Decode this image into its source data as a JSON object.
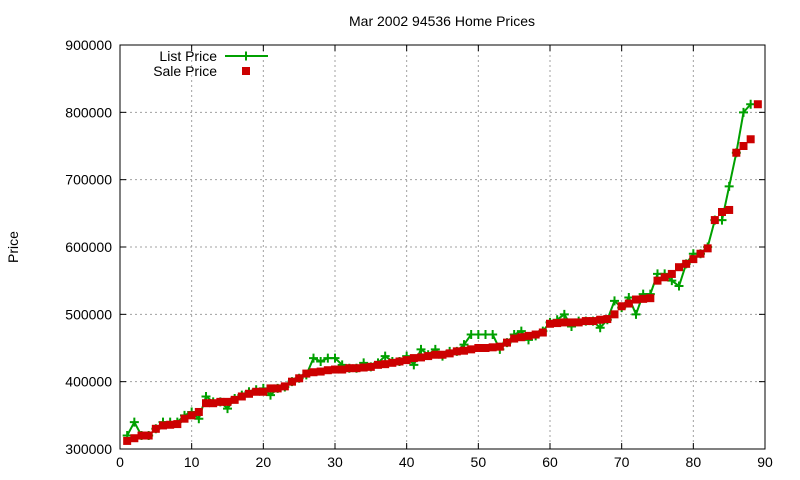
{
  "chart_data": {
    "type": "line",
    "title": "Mar 2002 94536 Home Prices",
    "xlabel": "",
    "ylabel": "Price",
    "xlim": [
      0,
      90
    ],
    "ylim": [
      300000,
      900000
    ],
    "x_ticks": [
      0,
      10,
      20,
      30,
      40,
      50,
      60,
      70,
      80,
      90
    ],
    "y_ticks": [
      300000,
      400000,
      500000,
      600000,
      700000,
      800000,
      900000
    ],
    "grid": true,
    "legend_position": "top-left",
    "series": [
      {
        "name": "List Price",
        "color": "#00a000",
        "marker": "plus",
        "line": true,
        "x": [
          1,
          2,
          3,
          4,
          5,
          6,
          7,
          8,
          9,
          10,
          11,
          12,
          13,
          14,
          15,
          16,
          17,
          18,
          19,
          20,
          21,
          22,
          23,
          24,
          25,
          26,
          27,
          28,
          29,
          30,
          31,
          32,
          33,
          34,
          35,
          36,
          37,
          38,
          39,
          40,
          41,
          42,
          43,
          44,
          45,
          46,
          47,
          48,
          49,
          50,
          51,
          52,
          53,
          54,
          55,
          56,
          57,
          58,
          59,
          60,
          61,
          62,
          63,
          64,
          65,
          66,
          67,
          68,
          69,
          70,
          71,
          72,
          73,
          74,
          75,
          76,
          77,
          78,
          79,
          80,
          81,
          82,
          83,
          84,
          85,
          86,
          87,
          88
        ],
        "values": [
          320000,
          340000,
          320000,
          320000,
          330000,
          340000,
          340000,
          340000,
          350000,
          355000,
          345000,
          378000,
          370000,
          370000,
          360000,
          375000,
          380000,
          385000,
          388000,
          390000,
          380000,
          390000,
          392000,
          400000,
          405000,
          410000,
          435000,
          430000,
          435000,
          435000,
          425000,
          420000,
          420000,
          428000,
          422000,
          428000,
          438000,
          430000,
          430000,
          438000,
          425000,
          448000,
          440000,
          448000,
          438000,
          445000,
          445000,
          455000,
          470000,
          470000,
          470000,
          470000,
          448000,
          458000,
          470000,
          475000,
          462000,
          468000,
          475000,
          488000,
          492000,
          500000,
          482000,
          490000,
          490000,
          490000,
          480000,
          492000,
          520000,
          510000,
          525000,
          500000,
          530000,
          530000,
          560000,
          560000,
          550000,
          542000,
          575000,
          590000,
          590000,
          600000,
          640000,
          640000,
          690000,
          740000,
          800000,
          812000
        ]
      },
      {
        "name": "Sale Price",
        "color": "#cc0000",
        "marker": "square",
        "line": false,
        "x": [
          1,
          2,
          3,
          4,
          5,
          6,
          7,
          8,
          9,
          10,
          11,
          12,
          13,
          14,
          15,
          16,
          17,
          18,
          19,
          20,
          21,
          22,
          23,
          24,
          25,
          26,
          27,
          28,
          29,
          30,
          31,
          32,
          33,
          34,
          35,
          36,
          37,
          38,
          39,
          40,
          41,
          42,
          43,
          44,
          45,
          46,
          47,
          48,
          49,
          50,
          51,
          52,
          53,
          54,
          55,
          56,
          57,
          58,
          59,
          60,
          61,
          62,
          63,
          64,
          65,
          66,
          67,
          68,
          69,
          70,
          71,
          72,
          73,
          74,
          75,
          76,
          77,
          78,
          79,
          80,
          81,
          82,
          83,
          84,
          85,
          86,
          87,
          88,
          89
        ],
        "values": [
          312000,
          316000,
          320000,
          320000,
          330000,
          335000,
          336000,
          337000,
          345000,
          350000,
          355000,
          368000,
          368000,
          370000,
          370000,
          373000,
          378000,
          382000,
          385000,
          385000,
          390000,
          390000,
          393000,
          400000,
          405000,
          412000,
          414000,
          415000,
          417000,
          418000,
          418000,
          420000,
          420000,
          421000,
          422000,
          425000,
          426000,
          428000,
          430000,
          432000,
          435000,
          436000,
          438000,
          440000,
          440000,
          442000,
          445000,
          446000,
          448000,
          450000,
          450000,
          451000,
          452000,
          458000,
          464000,
          466000,
          468000,
          470000,
          473000,
          486000,
          487000,
          488000,
          488000,
          488000,
          490000,
          490000,
          492000,
          493000,
          500000,
          512000,
          516000,
          522000,
          523000,
          524000,
          550000,
          555000,
          560000,
          570000,
          575000,
          582000,
          590000,
          598000,
          640000,
          652000,
          655000,
          740000,
          750000,
          760000,
          812000
        ]
      }
    ]
  }
}
